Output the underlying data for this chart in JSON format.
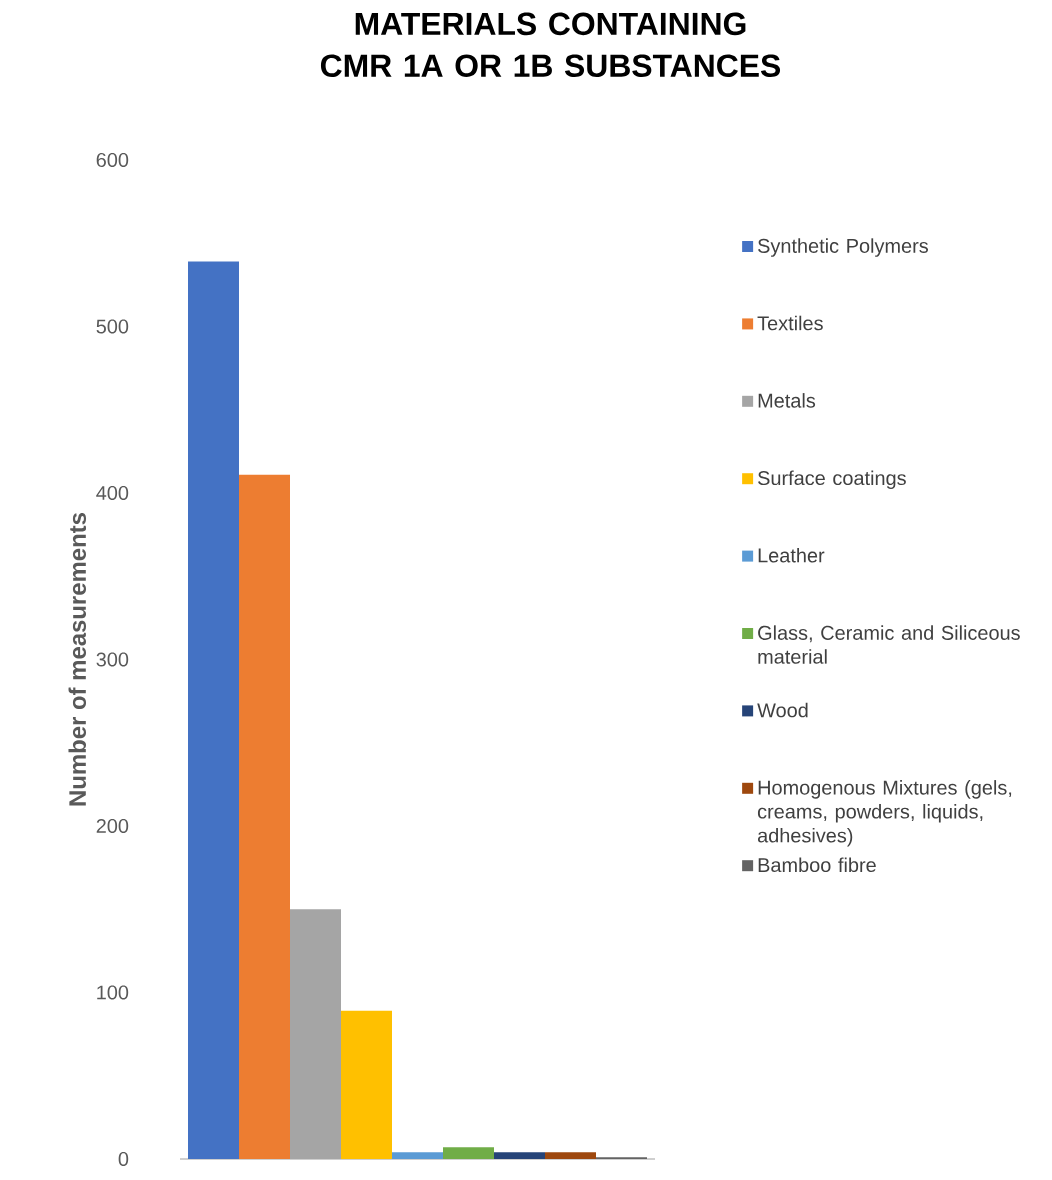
{
  "chart_data": {
    "type": "bar",
    "title": "MATERIALS CONTAINING CMR 1A OR 1B SUBSTANCES",
    "ylabel": "Number of measurements",
    "categories": [
      null
    ],
    "series": [
      {
        "name": "Synthetic Polymers",
        "color": "#4472c4",
        "values": [
          539
        ]
      },
      {
        "name": "Textiles",
        "color": "#ed7d31",
        "values": [
          411
        ]
      },
      {
        "name": "Metals",
        "color": "#a5a5a5",
        "values": [
          150
        ]
      },
      {
        "name": "Surface coatings",
        "color": "#ffc000",
        "values": [
          89
        ]
      },
      {
        "name": "Leather",
        "color": "#5b9bd5",
        "values": [
          4
        ]
      },
      {
        "name": "Glass, Ceramic and Siliceous material",
        "color": "#70ad47",
        "values": [
          7
        ]
      },
      {
        "name": "Wood",
        "color": "#264478",
        "values": [
          4
        ]
      },
      {
        "name": "Homogenous Mixtures (gels, creams, powders, liquids, adhesives)",
        "color": "#9e480e",
        "values": [
          4
        ]
      },
      {
        "name": "Bamboo fibre",
        "color": "#636363",
        "values": [
          1
        ]
      }
    ],
    "ylim": [
      0,
      600
    ],
    "yticks": [
      0,
      100,
      200,
      300,
      400,
      500,
      600
    ],
    "legend": "right"
  }
}
